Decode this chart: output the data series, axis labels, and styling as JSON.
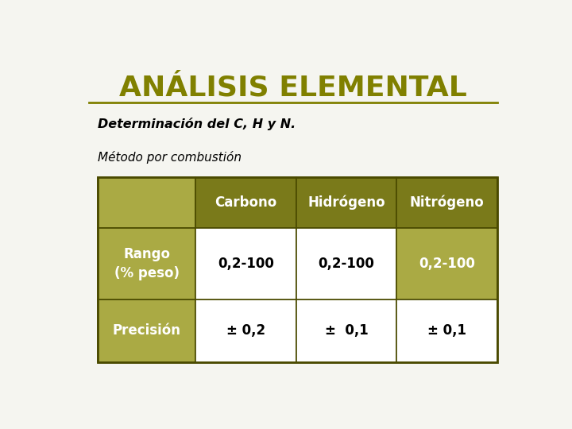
{
  "title": "ANÁLISIS ELEMENTAL",
  "subtitle1": "Determinación del C, H y N.",
  "subtitle2": "Método por combustión",
  "title_color": "#808000",
  "subtitle_color": "#000000",
  "bg_color": "#f5f5f0",
  "olive_color": "#808000",
  "olive_dark": "#7A7A1A",
  "olive_light": "#AAAA44",
  "table_border_color": "#4A4A00",
  "col_headers": [
    "Carbono",
    "Hidrógeno",
    "Nitrógeno"
  ],
  "row_headers": [
    "Rango\n(% peso)",
    "Precisión"
  ],
  "data": [
    [
      "0,2-100",
      "0,2-100",
      "0,2-100"
    ],
    [
      "± 0,2",
      "±  0,1",
      "± 0,1"
    ]
  ]
}
